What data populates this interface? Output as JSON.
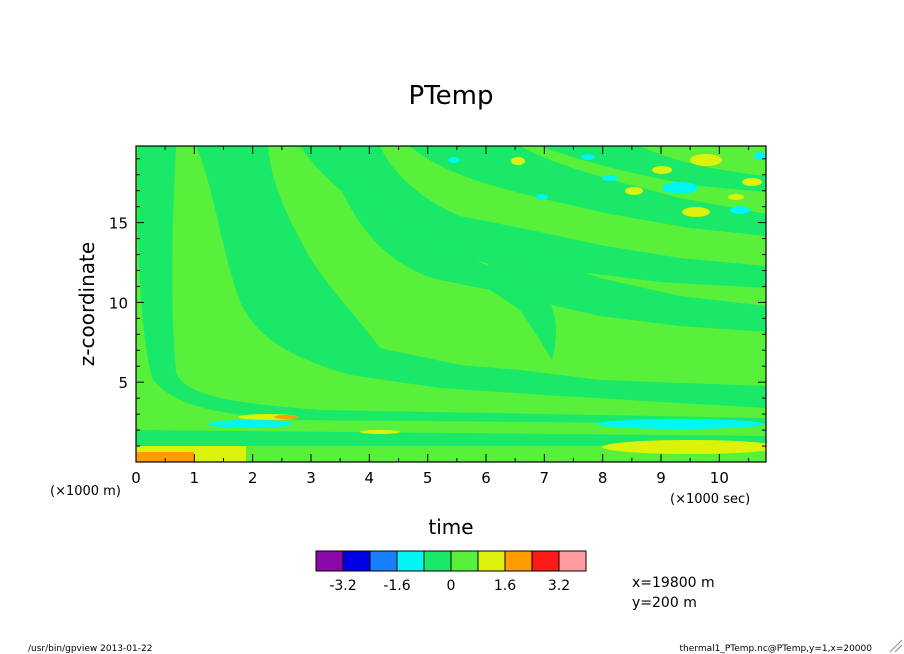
{
  "chart_data": {
    "type": "heatmap",
    "title": "PTemp",
    "xlabel": "time",
    "ylabel": "z-coordinate",
    "x_unit_label": "(×1000 sec)",
    "y_unit_label": "(×1000 m)",
    "xlim": [
      0,
      10.8
    ],
    "ylim": [
      0,
      19.8
    ],
    "x_ticks": [
      "0",
      "1",
      "2",
      "3",
      "4",
      "5",
      "6",
      "7",
      "8",
      "9",
      "10"
    ],
    "y_ticks": [
      "5",
      "10",
      "15"
    ],
    "colorbar": {
      "colors": [
        "#8a0aa8",
        "#0000e6",
        "#1a7fff",
        "#00f5f5",
        "#19e868",
        "#58f03a",
        "#ddf20a",
        "#ff9c00",
        "#ff1a1a",
        "#ff9aa0"
      ],
      "labels": [
        "-3.2",
        "-1.6",
        "0",
        "1.6",
        "3.2"
      ]
    },
    "notes": [
      "x=19800 m",
      "y=200 m"
    ]
  },
  "footer": {
    "left": "/usr/bin/gpview 2013-01-22",
    "right": "thermal1_PTemp.nc@PTemp,y=1,x=20000"
  }
}
